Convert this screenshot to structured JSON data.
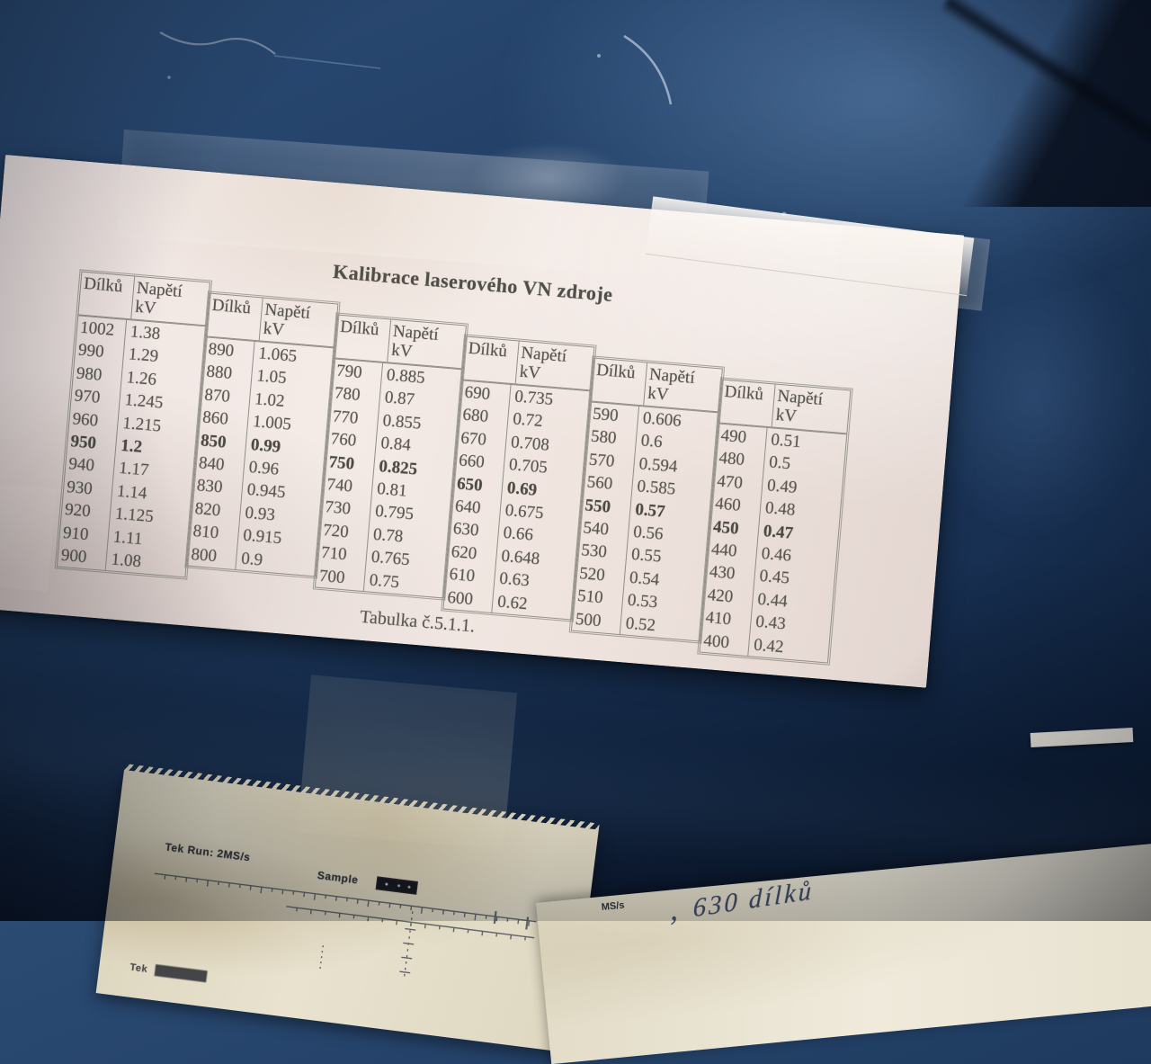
{
  "photo": {
    "panel_color": "#1e3a5e",
    "paper_color": "#f0e6e2",
    "ink_color": "#595750",
    "grid_line_color": "#918f85"
  },
  "calibration_sheet": {
    "title": "Kalibrace laserového VN zdroje",
    "caption": "Tabulka č.5.1.1.",
    "header": {
      "dilku": "Dílků",
      "napeti_1": "Napětí",
      "napeti_2": "kV"
    },
    "groups": [
      {
        "rows": [
          [
            "1002",
            "1.38",
            false
          ],
          [
            "990",
            "1.29",
            false
          ],
          [
            "980",
            "1.26",
            false
          ],
          [
            "970",
            "1.245",
            false
          ],
          [
            "960",
            "1.215",
            false
          ],
          [
            "950",
            "1.2",
            true
          ],
          [
            "940",
            "1.17",
            false
          ],
          [
            "930",
            "1.14",
            false
          ],
          [
            "920",
            "1.125",
            false
          ],
          [
            "910",
            "1.11",
            false
          ],
          [
            "900",
            "1.08",
            false
          ]
        ]
      },
      {
        "rows": [
          [
            "890",
            "1.065",
            false
          ],
          [
            "880",
            "1.05",
            false
          ],
          [
            "870",
            "1.02",
            false
          ],
          [
            "860",
            "1.005",
            false
          ],
          [
            "850",
            "0.99",
            true
          ],
          [
            "840",
            "0.96",
            false
          ],
          [
            "830",
            "0.945",
            false
          ],
          [
            "820",
            "0.93",
            false
          ],
          [
            "810",
            "0.915",
            false
          ],
          [
            "800",
            "0.9",
            false
          ]
        ]
      },
      {
        "rows": [
          [
            "790",
            "0.885",
            false
          ],
          [
            "780",
            "0.87",
            false
          ],
          [
            "770",
            "0.855",
            false
          ],
          [
            "760",
            "0.84",
            false
          ],
          [
            "750",
            "0.825",
            true
          ],
          [
            "740",
            "0.81",
            false
          ],
          [
            "730",
            "0.795",
            false
          ],
          [
            "720",
            "0.78",
            false
          ],
          [
            "710",
            "0.765",
            false
          ],
          [
            "700",
            "0.75",
            false
          ]
        ]
      },
      {
        "rows": [
          [
            "690",
            "0.735",
            false
          ],
          [
            "680",
            "0.72",
            false
          ],
          [
            "670",
            "0.708",
            false
          ],
          [
            "660",
            "0.705",
            false
          ],
          [
            "650",
            "0.69",
            true
          ],
          [
            "640",
            "0.675",
            false
          ],
          [
            "630",
            "0.66",
            false
          ],
          [
            "620",
            "0.648",
            false
          ],
          [
            "610",
            "0.63",
            false
          ],
          [
            "600",
            "0.62",
            false
          ]
        ]
      },
      {
        "rows": [
          [
            "590",
            "0.606",
            false
          ],
          [
            "580",
            "0.6",
            false
          ],
          [
            "570",
            "0.594",
            false
          ],
          [
            "560",
            "0.585",
            false
          ],
          [
            "550",
            "0.57",
            true
          ],
          [
            "540",
            "0.56",
            false
          ],
          [
            "530",
            "0.55",
            false
          ],
          [
            "520",
            "0.54",
            false
          ],
          [
            "510",
            "0.53",
            false
          ],
          [
            "500",
            "0.52",
            false
          ]
        ]
      },
      {
        "rows": [
          [
            "490",
            "0.51",
            false
          ],
          [
            "480",
            "0.5",
            false
          ],
          [
            "470",
            "0.49",
            false
          ],
          [
            "460",
            "0.48",
            false
          ],
          [
            "450",
            "0.47",
            true
          ],
          [
            "440",
            "0.46",
            false
          ],
          [
            "430",
            "0.45",
            false
          ],
          [
            "420",
            "0.44",
            false
          ],
          [
            "410",
            "0.43",
            false
          ],
          [
            "400",
            "0.42",
            false
          ]
        ]
      }
    ]
  },
  "scope_printout": {
    "run_label": "Tek Run: 2MS/s",
    "sample_label": "Sample",
    "bottom_label": "Tek"
  },
  "note_paper": {
    "handwritten_note": "630 dílků",
    "partial_label": "MS/s"
  }
}
